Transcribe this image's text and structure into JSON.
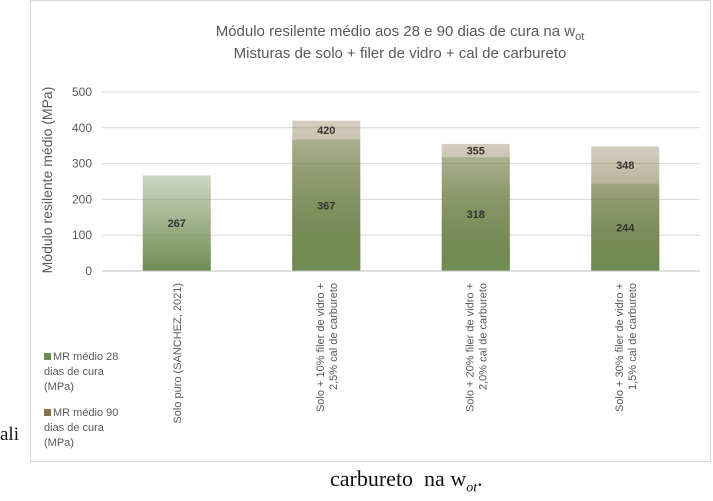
{
  "chart_data": {
    "type": "bar",
    "title": "Módulo resilente médio aos 28 e 90 dias de cura na w",
    "title_subscript": "ot",
    "subtitle": "Misturas de solo + filer de vidro + cal de carbureto",
    "y_label": "Módulo resilente médio (MPa)",
    "categories": [
      [
        "Solo puro (SANCHEZ, 2021)"
      ],
      [
        "Solo + 10% filer de vidro +",
        "2,5% cal de carbureto"
      ],
      [
        "Solo + 20% filer de vidro +",
        "2,0% cal de carbureto"
      ],
      [
        "Solo + 30% filer de vidro +",
        "1,5% cal de carbureto"
      ]
    ],
    "series": [
      {
        "name": "MR médio 28 dias de cura (MPa)",
        "color": "#6f8c52",
        "values": [
          267,
          367,
          318,
          244
        ]
      },
      {
        "name": "MR médio 90 dias de cura (MPa)",
        "color": "#857448",
        "values": [
          null,
          420,
          355,
          348
        ]
      }
    ],
    "ylim": [
      0,
      500
    ],
    "yticks": [
      0,
      100,
      200,
      300,
      400,
      500
    ],
    "grid": true
  },
  "document": {
    "left_fragment": "ali",
    "caption": "carbureto  na w",
    "caption_subscript": "ot",
    "caption_end": "."
  }
}
